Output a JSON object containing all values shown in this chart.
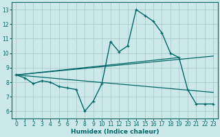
{
  "xlabel": "Humidex (Indice chaleur)",
  "bg_color": "#cce8e8",
  "grid_color": "#aacccc",
  "line_color": "#006666",
  "xlim": [
    -0.5,
    23.5
  ],
  "ylim": [
    5.5,
    13.5
  ],
  "yticks": [
    6,
    7,
    8,
    9,
    10,
    11,
    12,
    13
  ],
  "xticks": [
    0,
    1,
    2,
    3,
    4,
    5,
    6,
    7,
    8,
    9,
    10,
    11,
    12,
    13,
    14,
    15,
    16,
    17,
    18,
    19,
    20,
    21,
    22,
    23
  ],
  "xtick_labels": [
    "0",
    "1",
    "2",
    "3",
    "4",
    "5",
    "6",
    "7",
    "8",
    "9",
    "10",
    "11",
    "12",
    "13",
    "14",
    "15",
    "16",
    "17",
    "18",
    "19",
    "20",
    "21",
    "22",
    "23"
  ],
  "main_x": [
    0,
    1,
    2,
    3,
    4,
    5,
    6,
    7,
    8,
    9,
    10,
    11,
    12,
    13,
    14,
    15,
    16,
    17,
    18,
    19,
    20,
    21,
    22,
    23
  ],
  "main_y": [
    8.5,
    8.3,
    7.9,
    8.1,
    8.0,
    7.7,
    7.6,
    7.5,
    6.0,
    6.7,
    7.9,
    10.8,
    10.1,
    10.5,
    13.0,
    12.6,
    12.2,
    11.4,
    10.0,
    9.7,
    7.5,
    6.5,
    6.5,
    6.5
  ],
  "trend1_x": [
    0,
    23
  ],
  "trend1_y": [
    8.5,
    9.8
  ],
  "trend2_x": [
    0,
    23
  ],
  "trend2_y": [
    8.5,
    7.3
  ],
  "trend3_x": [
    0,
    19
  ],
  "trend3_y": [
    8.5,
    9.7
  ]
}
